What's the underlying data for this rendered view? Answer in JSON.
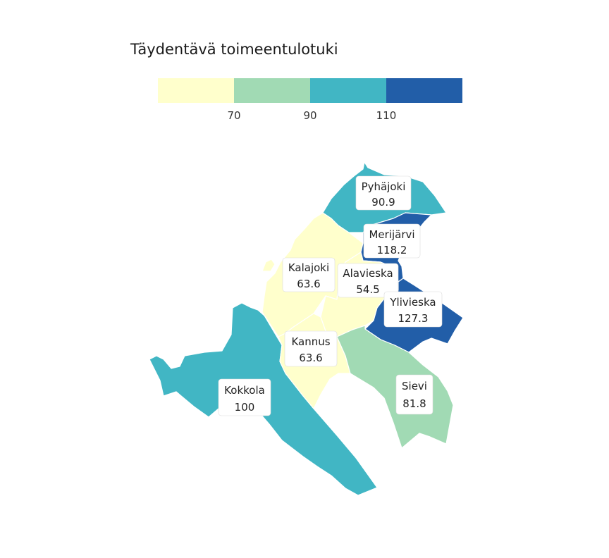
{
  "title": "Täydentävä toimeentulotuki",
  "legend": {
    "breaks": [
      "70",
      "90",
      "110"
    ],
    "colors": [
      "#ffffcc",
      "#a1dab4",
      "#41b6c4",
      "#225ea8"
    ]
  },
  "regions": [
    {
      "id": "pyhajoki",
      "name": "Pyhäjoki",
      "value": "90.9",
      "color": "#41b6c4"
    },
    {
      "id": "merijarvi",
      "name": "Merijärvi",
      "value": "118.2",
      "color": "#225ea8"
    },
    {
      "id": "kalajoki",
      "name": "Kalajoki",
      "value": "63.6",
      "color": "#ffffcc"
    },
    {
      "id": "alavieska",
      "name": "Alavieska",
      "value": "54.5",
      "color": "#ffffcc"
    },
    {
      "id": "ylivieska",
      "name": "Ylivieska",
      "value": "127.3",
      "color": "#225ea8"
    },
    {
      "id": "kannus",
      "name": "Kannus",
      "value": "63.6",
      "color": "#ffffcc"
    },
    {
      "id": "sievi",
      "name": "Sievi",
      "value": "81.8",
      "color": "#a1dab4"
    },
    {
      "id": "kokkola",
      "name": "Kokkola",
      "value": "100",
      "color": "#41b6c4"
    }
  ]
}
